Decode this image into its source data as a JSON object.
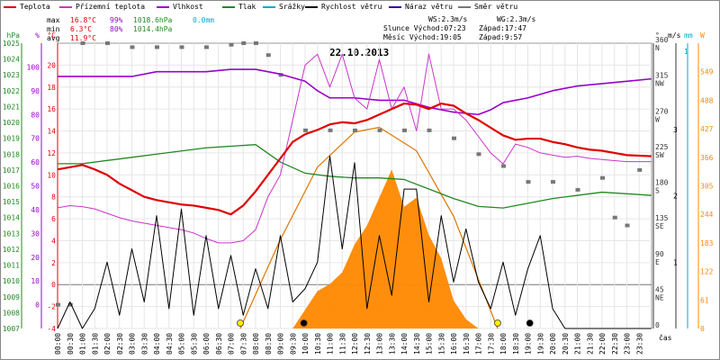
{
  "legend": [
    {
      "label": "Teplota",
      "color": "#e00000"
    },
    {
      "label": "Přízemní teplota",
      "color": "#cc33cc"
    },
    {
      "label": "Vlhkost",
      "color": "#9900cc"
    },
    {
      "label": "Tlak",
      "color": "#228822"
    },
    {
      "label": "Srážky",
      "color": "#00aacc"
    },
    {
      "label": "Rychlost větru",
      "color": "#000000"
    },
    {
      "label": "Náraz větru",
      "color": "#330099"
    },
    {
      "label": "Směr větru",
      "color": "#777777"
    }
  ],
  "stats": {
    "max": {
      "label": "max",
      "temp": "16.8°C",
      "hum": "99%",
      "press": "1018.6hPa",
      "rain": "0.0mm"
    },
    "min": {
      "label": "min",
      "temp": "6.3°C",
      "hum": "80%",
      "press": "1014.4hPa"
    },
    "avg": {
      "label": "avg",
      "temp": "11.9°C"
    }
  },
  "sun": {
    "ws": "WS:2.3m/s",
    "wg": "WG:2.3m/s",
    "sunrise": "Slunce Východ:07:23",
    "sunset": "Západ:17:47",
    "moonrise": "Měsíc  Východ:19:05",
    "moonset": "Západ:9:57"
  },
  "date": "22.10.2013",
  "colors": {
    "temp": "#e00000",
    "ground": "#cc33cc",
    "hum": "#9900cc",
    "press": "#228822",
    "wind": "#000000",
    "dir": "#777777",
    "solar": "#ff8800",
    "sunarc": "#dd7700",
    "rain": "#00aacc"
  },
  "chart_data": {
    "type": "line",
    "title": "22.10.2013",
    "xlabel": "čas",
    "x_ticks": [
      "00:00",
      "00:30",
      "01:00",
      "01:30",
      "02:00",
      "02:30",
      "03:00",
      "03:30",
      "04:00",
      "04:30",
      "05:00",
      "05:30",
      "06:00",
      "06:30",
      "07:00",
      "07:30",
      "08:00",
      "08:30",
      "09:00",
      "09:30",
      "10:00",
      "10:30",
      "11:00",
      "11:30",
      "12:00",
      "12:30",
      "13:00",
      "13:30",
      "14:00",
      "14:30",
      "15:00",
      "15:30",
      "16:00",
      "16:30",
      "17:00",
      "17:30",
      "18:00",
      "18:30",
      "19:00",
      "19:30",
      "20:00",
      "20:30",
      "21:00",
      "21:30",
      "22:00",
      "22:30",
      "23:00",
      "23:30"
    ],
    "axes": {
      "hPa": {
        "label": "hPa",
        "ticks": [
          1007,
          1008,
          1009,
          1010,
          1011,
          1012,
          1013,
          1014,
          1015,
          1016,
          1017,
          1018,
          1019,
          1020,
          1021,
          1022,
          1023,
          1024,
          1025
        ],
        "range": [
          1007,
          1025
        ]
      },
      "percent": {
        "label": "%",
        "ticks": [
          0,
          10,
          20,
          30,
          40,
          50,
          60,
          70,
          80,
          90,
          100
        ],
        "range": [
          -10,
          110
        ]
      },
      "celsius": {
        "label": "°C",
        "ticks": [
          -4,
          -2,
          0,
          2,
          4,
          6,
          8,
          10,
          12,
          14,
          16,
          18,
          20
        ],
        "range": [
          -4,
          22
        ]
      },
      "direction": {
        "label": "°",
        "ticks": [
          "0",
          "45 NE",
          "90 E",
          "135 SE",
          "180 S",
          "225 SW",
          "270 W",
          "315 NW",
          "360 N"
        ],
        "range": [
          0,
          360
        ]
      },
      "wind": {
        "label": "m/s",
        "ticks": [
          1,
          2,
          3
        ],
        "range": [
          0,
          4.3
        ]
      },
      "rain": {
        "label": "mm",
        "ticks": [
          0,
          1
        ],
        "range": [
          0,
          1
        ]
      },
      "solar": {
        "label": "W",
        "ticks": [
          0,
          61,
          122,
          183,
          244,
          305,
          366,
          427,
          488,
          549
        ],
        "range": [
          0,
          610
        ]
      }
    },
    "series": [
      {
        "name": "Teplota",
        "unit": "°C",
        "points": [
          [
            0,
            10.5
          ],
          [
            0.5,
            10.7
          ],
          [
            1,
            10.9
          ],
          [
            1.5,
            10.5
          ],
          [
            2,
            10
          ],
          [
            2.5,
            9.2
          ],
          [
            3,
            8.6
          ],
          [
            3.5,
            8
          ],
          [
            4,
            7.7
          ],
          [
            4.5,
            7.5
          ],
          [
            5,
            7.3
          ],
          [
            5.5,
            7.2
          ],
          [
            6,
            7
          ],
          [
            6.5,
            6.8
          ],
          [
            7,
            6.4
          ],
          [
            7.5,
            7.2
          ],
          [
            8,
            8.5
          ],
          [
            8.5,
            10
          ],
          [
            9,
            11.5
          ],
          [
            9.5,
            13
          ],
          [
            10,
            13.7
          ],
          [
            10.5,
            14.1
          ],
          [
            11,
            14.6
          ],
          [
            11.5,
            14.8
          ],
          [
            12,
            14.7
          ],
          [
            12.5,
            15
          ],
          [
            13,
            15.5
          ],
          [
            13.5,
            16
          ],
          [
            14,
            16.5
          ],
          [
            14.5,
            16.4
          ],
          [
            15,
            16
          ],
          [
            15.5,
            16.5
          ],
          [
            16,
            16.3
          ],
          [
            16.5,
            15.6
          ],
          [
            17,
            15
          ],
          [
            17.5,
            14.3
          ],
          [
            18,
            13.6
          ],
          [
            18.5,
            13.2
          ],
          [
            19,
            13.3
          ],
          [
            19.5,
            13.3
          ],
          [
            20,
            13
          ],
          [
            20.5,
            12.8
          ],
          [
            21,
            12.5
          ],
          [
            21.5,
            12.3
          ],
          [
            22,
            12.2
          ],
          [
            22.5,
            12
          ],
          [
            23,
            11.8
          ],
          [
            23.99,
            11.7
          ]
        ]
      },
      {
        "name": "Přízemní teplota",
        "unit": "°C",
        "points": [
          [
            0,
            7
          ],
          [
            0.5,
            7.2
          ],
          [
            1,
            7.1
          ],
          [
            1.5,
            6.9
          ],
          [
            2,
            6.5
          ],
          [
            2.5,
            6.1
          ],
          [
            3,
            5.8
          ],
          [
            3.5,
            5.6
          ],
          [
            4,
            5.4
          ],
          [
            4.5,
            5.2
          ],
          [
            5,
            5
          ],
          [
            5.5,
            4.7
          ],
          [
            6,
            4.2
          ],
          [
            6.5,
            3.8
          ],
          [
            7,
            3.8
          ],
          [
            7.5,
            4
          ],
          [
            8,
            5
          ],
          [
            8.5,
            8
          ],
          [
            9,
            10
          ],
          [
            9.5,
            15
          ],
          [
            10,
            20
          ],
          [
            10.5,
            21
          ],
          [
            11,
            18
          ],
          [
            11.5,
            21
          ],
          [
            12,
            17
          ],
          [
            12.5,
            16
          ],
          [
            13,
            20.5
          ],
          [
            13.5,
            16
          ],
          [
            14,
            18
          ],
          [
            14.5,
            14
          ],
          [
            15,
            21
          ],
          [
            15.5,
            16
          ],
          [
            16,
            16
          ],
          [
            16.5,
            15
          ],
          [
            17,
            13.5
          ],
          [
            17.5,
            12
          ],
          [
            18,
            11
          ],
          [
            18.5,
            12.8
          ],
          [
            19,
            12.5
          ],
          [
            19.5,
            12
          ],
          [
            20,
            11.8
          ],
          [
            20.5,
            11.6
          ],
          [
            21,
            11.7
          ],
          [
            21.5,
            11.5
          ],
          [
            22,
            11.4
          ],
          [
            22.5,
            11.3
          ],
          [
            23,
            11.2
          ],
          [
            23.99,
            11.2
          ]
        ]
      },
      {
        "name": "Vlhkost",
        "unit": "%",
        "points": [
          [
            0,
            96
          ],
          [
            1,
            96
          ],
          [
            2,
            96
          ],
          [
            3,
            96
          ],
          [
            4,
            98
          ],
          [
            5,
            98
          ],
          [
            6,
            98
          ],
          [
            7,
            99
          ],
          [
            8,
            99
          ],
          [
            9,
            97
          ],
          [
            10,
            94
          ],
          [
            10.5,
            90
          ],
          [
            11,
            87
          ],
          [
            12,
            87
          ],
          [
            13,
            86
          ],
          [
            14,
            86
          ],
          [
            15,
            83
          ],
          [
            16,
            81
          ],
          [
            17,
            80
          ],
          [
            17.5,
            82
          ],
          [
            18,
            85
          ],
          [
            19,
            87
          ],
          [
            20,
            90
          ],
          [
            21,
            92
          ],
          [
            22,
            93
          ],
          [
            23,
            94
          ],
          [
            23.99,
            95
          ]
        ]
      },
      {
        "name": "Tlak",
        "unit": "hPa",
        "points": [
          [
            0,
            1017.4
          ],
          [
            1,
            1017.4
          ],
          [
            2,
            1017.6
          ],
          [
            3,
            1017.8
          ],
          [
            4,
            1018
          ],
          [
            5,
            1018.2
          ],
          [
            6,
            1018.4
          ],
          [
            7,
            1018.5
          ],
          [
            8,
            1018.6
          ],
          [
            9,
            1017.5
          ],
          [
            10,
            1016.8
          ],
          [
            11,
            1016.6
          ],
          [
            12,
            1016.5
          ],
          [
            13,
            1016.5
          ],
          [
            14,
            1016.4
          ],
          [
            15,
            1015.8
          ],
          [
            16,
            1015.2
          ],
          [
            17,
            1014.7
          ],
          [
            18,
            1014.6
          ],
          [
            19,
            1014.9
          ],
          [
            20,
            1015.2
          ],
          [
            21,
            1015.4
          ],
          [
            22,
            1015.6
          ],
          [
            23,
            1015.5
          ],
          [
            23.99,
            1015.4
          ]
        ]
      },
      {
        "name": "Rychlost větru",
        "unit": "m/s",
        "points": [
          [
            0,
            0
          ],
          [
            0.5,
            0.4
          ],
          [
            1,
            0
          ],
          [
            1.5,
            0.3
          ],
          [
            2,
            1
          ],
          [
            2.5,
            0.2
          ],
          [
            3,
            1.2
          ],
          [
            3.5,
            0.4
          ],
          [
            4,
            1.7
          ],
          [
            4.5,
            0.3
          ],
          [
            5,
            1.8
          ],
          [
            5.5,
            0.2
          ],
          [
            6,
            1.4
          ],
          [
            6.5,
            0.3
          ],
          [
            7,
            1.1
          ],
          [
            7.5,
            0.2
          ],
          [
            8,
            0.9
          ],
          [
            8.5,
            0.3
          ],
          [
            9,
            1.4
          ],
          [
            9.5,
            0.4
          ],
          [
            10,
            0.6
          ],
          [
            10.5,
            1
          ],
          [
            11,
            2.6
          ],
          [
            11.5,
            1.2
          ],
          [
            12,
            2.5
          ],
          [
            12.5,
            0.3
          ],
          [
            13,
            1.4
          ],
          [
            13.5,
            0.5
          ],
          [
            14,
            2.1
          ],
          [
            14.5,
            2.1
          ],
          [
            15,
            0.4
          ],
          [
            15.5,
            1.7
          ],
          [
            16,
            0.7
          ],
          [
            16.5,
            1.5
          ],
          [
            17,
            0.7
          ],
          [
            17.5,
            0.3
          ],
          [
            18,
            1
          ],
          [
            18.5,
            0.2
          ],
          [
            19,
            0.9
          ],
          [
            19.5,
            1.4
          ],
          [
            20,
            0.3
          ],
          [
            20.5,
            0
          ],
          [
            21,
            0
          ],
          [
            22,
            0
          ],
          [
            23,
            0
          ],
          [
            23.99,
            0
          ]
        ]
      },
      {
        "name": "Směr větru",
        "unit": "°",
        "points": [
          [
            0,
            30
          ],
          [
            0.5,
            30
          ],
          [
            1,
            360
          ],
          [
            2,
            360
          ],
          [
            3,
            355
          ],
          [
            4,
            355
          ],
          [
            5,
            355
          ],
          [
            6,
            355
          ],
          [
            7,
            358
          ],
          [
            7.5,
            360
          ],
          [
            8,
            360
          ],
          [
            8.5,
            345
          ],
          [
            9,
            320
          ],
          [
            10,
            250
          ],
          [
            11,
            250
          ],
          [
            12,
            250
          ],
          [
            13,
            250
          ],
          [
            14,
            250
          ],
          [
            15,
            250
          ],
          [
            16,
            240
          ],
          [
            17,
            220
          ],
          [
            18,
            205
          ],
          [
            19,
            185
          ],
          [
            20,
            185
          ],
          [
            21,
            175
          ],
          [
            22,
            190
          ],
          [
            22.5,
            140
          ],
          [
            23,
            130
          ],
          [
            23.5,
            200
          ]
        ]
      }
    ],
    "solar_radiation": {
      "unit": "W",
      "points": [
        [
          0,
          0
        ],
        [
          9.5,
          0
        ],
        [
          10,
          40
        ],
        [
          10.5,
          80
        ],
        [
          11,
          95
        ],
        [
          11.5,
          120
        ],
        [
          12,
          180
        ],
        [
          12.5,
          220
        ],
        [
          13,
          280
        ],
        [
          13.5,
          340
        ],
        [
          14,
          260
        ],
        [
          14.5,
          280
        ],
        [
          15,
          200
        ],
        [
          15.5,
          150
        ],
        [
          16,
          60
        ],
        [
          16.5,
          20
        ],
        [
          17,
          0
        ],
        [
          23.99,
          0
        ]
      ]
    },
    "sun_arc": {
      "unit": "W",
      "points": [
        [
          7.38,
          0
        ],
        [
          9,
          190
        ],
        [
          10.5,
          345
        ],
        [
          12,
          420
        ],
        [
          13,
          430
        ],
        [
          14.5,
          380
        ],
        [
          16,
          240
        ],
        [
          17.78,
          0
        ]
      ]
    },
    "events": [
      {
        "type": "sunrise",
        "time": 7.38
      },
      {
        "type": "sunset",
        "time": 17.78
      },
      {
        "type": "moonrise",
        "time": 19.08
      },
      {
        "type": "moonset",
        "time": 9.95
      }
    ],
    "legend_position": "top"
  }
}
